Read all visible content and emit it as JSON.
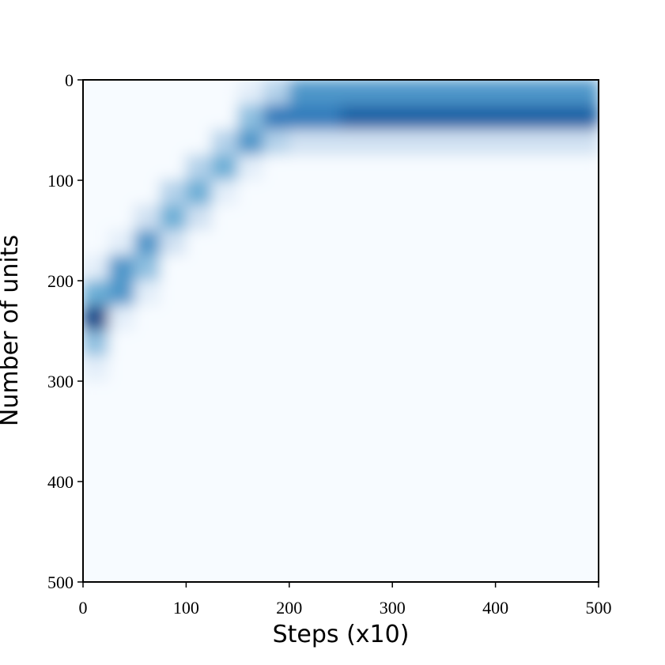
{
  "chart_data": {
    "type": "heatmap",
    "x_label": "Steps (x10)",
    "y_label": "Number of units",
    "xlim": [
      0,
      500
    ],
    "ylim": [
      500,
      0
    ],
    "xticks": [
      0,
      100,
      200,
      300,
      400,
      500
    ],
    "yticks": [
      0,
      100,
      200,
      300,
      400,
      500
    ],
    "colormap": [
      "#f7fbff",
      "#c6dbef",
      "#6baed6",
      "#2171b5",
      "#08306b"
    ],
    "z": [
      [
        0,
        0,
        0,
        0,
        0,
        0,
        0.1,
        0.3,
        0.6,
        0.6,
        0.6,
        0.6,
        0.6,
        0.6,
        0.6,
        0.6,
        0.6,
        0.6,
        0.6,
        0.6
      ],
      [
        0,
        0,
        0,
        0,
        0,
        0,
        0.4,
        0.7,
        0.7,
        0.7,
        0.8,
        0.8,
        0.8,
        0.8,
        0.8,
        0.8,
        0.8,
        0.8,
        0.8,
        0.8
      ],
      [
        0,
        0,
        0,
        0,
        0,
        0.3,
        0.6,
        0.3,
        0.2,
        0.2,
        0.2,
        0.2,
        0.2,
        0.2,
        0.2,
        0.2,
        0.2,
        0.2,
        0.2,
        0.2
      ],
      [
        0,
        0,
        0,
        0,
        0.3,
        0.5,
        0.1,
        0,
        0,
        0,
        0,
        0,
        0,
        0,
        0,
        0,
        0,
        0,
        0,
        0
      ],
      [
        0,
        0,
        0,
        0.3,
        0.5,
        0.1,
        0,
        0,
        0,
        0,
        0,
        0,
        0,
        0,
        0,
        0,
        0,
        0,
        0,
        0
      ],
      [
        0,
        0,
        0.2,
        0.5,
        0.2,
        0,
        0,
        0,
        0,
        0,
        0,
        0,
        0,
        0,
        0,
        0,
        0,
        0,
        0,
        0
      ],
      [
        0,
        0.1,
        0.6,
        0.2,
        0,
        0,
        0,
        0,
        0,
        0,
        0,
        0,
        0,
        0,
        0,
        0,
        0,
        0,
        0,
        0
      ],
      [
        0.1,
        0.6,
        0.4,
        0,
        0,
        0,
        0,
        0,
        0,
        0,
        0,
        0,
        0,
        0,
        0,
        0,
        0,
        0,
        0,
        0
      ],
      [
        0.5,
        0.6,
        0.1,
        0,
        0,
        0,
        0,
        0,
        0,
        0,
        0,
        0,
        0,
        0,
        0,
        0,
        0,
        0,
        0,
        0
      ],
      [
        0.9,
        0.1,
        0,
        0,
        0,
        0,
        0,
        0,
        0,
        0,
        0,
        0,
        0,
        0,
        0,
        0,
        0,
        0,
        0,
        0
      ],
      [
        0.4,
        0,
        0,
        0,
        0,
        0,
        0,
        0,
        0,
        0,
        0,
        0,
        0,
        0,
        0,
        0,
        0,
        0,
        0,
        0
      ],
      [
        0.1,
        0,
        0,
        0,
        0,
        0,
        0,
        0,
        0,
        0,
        0,
        0,
        0,
        0,
        0,
        0,
        0,
        0,
        0,
        0
      ],
      [
        0,
        0,
        0,
        0,
        0,
        0,
        0,
        0,
        0,
        0,
        0,
        0,
        0,
        0,
        0,
        0,
        0,
        0,
        0,
        0
      ],
      [
        0,
        0,
        0,
        0,
        0,
        0,
        0,
        0,
        0,
        0,
        0,
        0,
        0,
        0,
        0,
        0,
        0,
        0,
        0,
        0
      ],
      [
        0,
        0,
        0,
        0,
        0,
        0,
        0,
        0,
        0,
        0,
        0,
        0,
        0,
        0,
        0,
        0,
        0,
        0,
        0,
        0
      ],
      [
        0,
        0,
        0,
        0,
        0,
        0,
        0,
        0,
        0,
        0,
        0,
        0,
        0,
        0,
        0,
        0,
        0,
        0,
        0,
        0
      ],
      [
        0,
        0,
        0,
        0,
        0,
        0,
        0,
        0,
        0,
        0,
        0,
        0,
        0,
        0,
        0,
        0,
        0,
        0,
        0,
        0
      ],
      [
        0,
        0,
        0,
        0,
        0,
        0,
        0,
        0,
        0,
        0,
        0,
        0,
        0,
        0,
        0,
        0,
        0,
        0,
        0,
        0
      ],
      [
        0,
        0,
        0,
        0,
        0,
        0,
        0,
        0,
        0,
        0,
        0,
        0,
        0,
        0,
        0,
        0,
        0,
        0,
        0,
        0
      ],
      [
        0,
        0,
        0,
        0,
        0,
        0,
        0,
        0,
        0,
        0,
        0,
        0,
        0,
        0,
        0,
        0,
        0,
        0,
        0,
        0
      ]
    ]
  }
}
